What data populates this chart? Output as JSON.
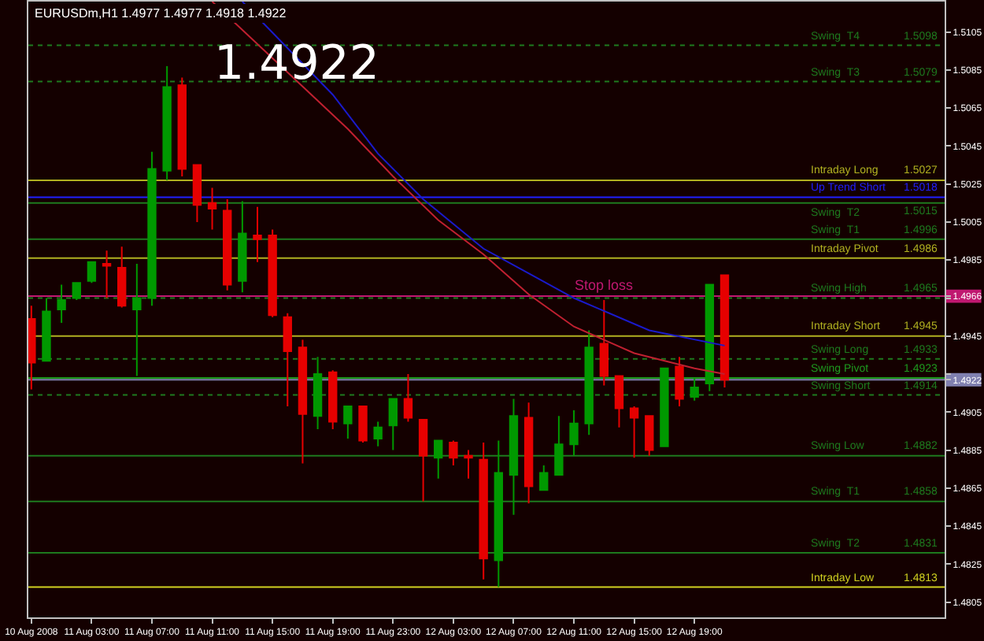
{
  "chart_data": {
    "type": "candlestick",
    "title": "EURUSDm,H1 1.4977 1.4977 1.4918 1.4922",
    "x": [
      "2008-08-10T23:00",
      "2008-08-11T00:00",
      "2008-08-11T01:00",
      "2008-08-11T02:00",
      "2008-08-11T03:00",
      "2008-08-11T04:00",
      "2008-08-11T05:00",
      "2008-08-11T06:00",
      "2008-08-11T07:00",
      "2008-08-11T08:00",
      "2008-08-11T09:00",
      "2008-08-11T10:00",
      "2008-08-11T11:00",
      "2008-08-11T12:00",
      "2008-08-11T13:00",
      "2008-08-11T14:00",
      "2008-08-11T15:00",
      "2008-08-11T16:00",
      "2008-08-11T17:00",
      "2008-08-11T18:00",
      "2008-08-11T19:00",
      "2008-08-11T20:00",
      "2008-08-11T21:00",
      "2008-08-11T22:00",
      "2008-08-11T23:00",
      "2008-08-12T00:00",
      "2008-08-12T01:00",
      "2008-08-12T02:00",
      "2008-08-12T03:00",
      "2008-08-12T04:00",
      "2008-08-12T05:00",
      "2008-08-12T06:00",
      "2008-08-12T07:00",
      "2008-08-12T08:00",
      "2008-08-12T09:00",
      "2008-08-12T10:00",
      "2008-08-12T11:00",
      "2008-08-12T12:00",
      "2008-08-12T13:00",
      "2008-08-12T14:00",
      "2008-08-12T15:00",
      "2008-08-12T16:00",
      "2008-08-12T17:00",
      "2008-08-12T18:00",
      "2008-08-12T19:00",
      "2008-08-12T20:00",
      "2008-08-12T21:00"
    ],
    "ohlc": [
      [
        1.4954,
        1.4961,
        1.4917,
        1.4931
      ],
      [
        1.4932,
        1.4965,
        1.4932,
        1.4958
      ],
      [
        1.4959,
        1.4972,
        1.4952,
        1.4964
      ],
      [
        1.4965,
        1.4973,
        1.4964,
        1.4973
      ],
      [
        1.4974,
        1.4984,
        1.4973,
        1.4984
      ],
      [
        1.4983,
        1.499,
        1.4965,
        1.4982
      ],
      [
        1.4981,
        1.4992,
        1.496,
        1.4961
      ],
      [
        1.4959,
        1.4983,
        1.4924,
        1.4965
      ],
      [
        1.4965,
        1.5042,
        1.4961,
        1.5033
      ],
      [
        1.5032,
        1.5087,
        1.5027,
        1.5076
      ],
      [
        1.5077,
        1.5081,
        1.5029,
        1.5033
      ],
      [
        1.5035,
        1.5035,
        1.5005,
        1.5014
      ],
      [
        1.5015,
        1.5023,
        1.5001,
        1.5012
      ],
      [
        1.5011,
        1.5017,
        1.4969,
        1.4972
      ],
      [
        1.4974,
        1.5016,
        1.4968,
        1.4999
      ],
      [
        1.4998,
        1.5013,
        1.4984,
        1.4996
      ],
      [
        1.4998,
        1.5001,
        1.4955,
        1.4956
      ],
      [
        1.4955,
        1.4957,
        1.4908,
        1.4937
      ],
      [
        1.4939,
        1.4943,
        1.4878,
        1.4904
      ],
      [
        1.4903,
        1.4934,
        1.4896,
        1.4925
      ],
      [
        1.4926,
        1.4927,
        1.4896,
        1.49
      ],
      [
        1.4899,
        1.4908,
        1.4891,
        1.4908
      ],
      [
        1.4908,
        1.4908,
        1.4889,
        1.489
      ],
      [
        1.4891,
        1.49,
        1.4887,
        1.4897
      ],
      [
        1.4898,
        1.4912,
        1.4885,
        1.4912
      ],
      [
        1.4912,
        1.4925,
        1.49,
        1.4902
      ],
      [
        1.4901,
        1.4901,
        1.4858,
        1.4882
      ],
      [
        1.4881,
        1.489,
        1.487,
        1.489
      ],
      [
        1.4889,
        1.489,
        1.4877,
        1.4881
      ],
      [
        1.4882,
        1.4885,
        1.487,
        1.4881
      ],
      [
        1.488,
        1.4889,
        1.4817,
        1.4828
      ],
      [
        1.4827,
        1.489,
        1.4813,
        1.4873
      ],
      [
        1.4872,
        1.4912,
        1.4851,
        1.4903
      ],
      [
        1.4902,
        1.491,
        1.4857,
        1.4866
      ],
      [
        1.4864,
        1.4877,
        1.4864,
        1.4873
      ],
      [
        1.4872,
        1.4903,
        1.4872,
        1.4888
      ],
      [
        1.4888,
        1.4906,
        1.4882,
        1.4899
      ],
      [
        1.4899,
        1.4948,
        1.4893,
        1.4939
      ],
      [
        1.4941,
        1.4964,
        1.4919,
        1.4924
      ],
      [
        1.4924,
        1.4924,
        1.4897,
        1.4907
      ],
      [
        1.4907,
        1.4908,
        1.4881,
        1.4902
      ],
      [
        1.4903,
        1.4903,
        1.4882,
        1.4885
      ],
      [
        1.4887,
        1.4928,
        1.4887,
        1.4928
      ],
      [
        1.4929,
        1.4934,
        1.4908,
        1.4912
      ],
      [
        1.4913,
        1.4923,
        1.4911,
        1.4918
      ],
      [
        1.492,
        1.4972,
        1.4916,
        1.4972
      ],
      [
        1.4977,
        1.4977,
        1.4918,
        1.4922
      ]
    ],
    "colors": [
      "#e60000",
      "#009900",
      "#009900",
      "#009900",
      "#009900",
      "#e60000",
      "#e60000",
      "#009900",
      "#009900",
      "#009900",
      "#e60000",
      "#e60000",
      "#e60000",
      "#e60000",
      "#009900",
      "#e60000",
      "#e60000",
      "#e60000",
      "#e60000",
      "#009900",
      "#e60000",
      "#009900",
      "#e60000",
      "#009900",
      "#009900",
      "#e60000",
      "#e60000",
      "#009900",
      "#e60000",
      "#e60000",
      "#e60000",
      "#009900",
      "#009900",
      "#e60000",
      "#009900",
      "#009900",
      "#009900",
      "#009900",
      "#e60000",
      "#e60000",
      "#e60000",
      "#e60000",
      "#009900",
      "#e60000",
      "#009900",
      "#009900",
      "#e60000"
    ],
    "series": [
      {
        "type": "line",
        "color": "#1a1acc",
        "x": [
          "2008-08-11T13:00",
          "2008-08-11T19:00",
          "2008-08-11T22:00",
          "2008-08-12T01:00",
          "2008-08-12T05:00",
          "2008-08-12T08:00",
          "2008-08-12T11:00",
          "2008-08-12T16:00",
          "2008-08-12T21:00"
        ],
        "values": [
          1.5121,
          1.5072,
          1.5041,
          1.5017,
          1.4991,
          1.4978,
          1.4965,
          1.4948,
          1.494
        ]
      },
      {
        "type": "line",
        "color": "#c02030",
        "x": [
          "2008-08-11T11:00",
          "2008-08-11T20:00",
          "2008-08-11T23:00",
          "2008-08-12T02:00",
          "2008-08-12T05:00",
          "2008-08-12T08:00",
          "2008-08-12T11:00",
          "2008-08-12T15:00",
          "2008-08-12T19:00",
          "2008-08-12T21:00"
        ],
        "values": [
          1.5121,
          1.5054,
          1.5029,
          1.5006,
          1.4988,
          1.4967,
          1.495,
          1.4936,
          1.4928,
          1.4925
        ]
      }
    ],
    "xlim": [
      "2008-08-10T22:48",
      "2008-08-13T11:36"
    ],
    "xticks": [
      {
        "value": "2008-08-10T23:00",
        "label": "10 Aug 2008"
      },
      {
        "value": "2008-08-11T03:00",
        "label": "11 Aug 03:00"
      },
      {
        "value": "2008-08-11T07:00",
        "label": "11 Aug 07:00"
      },
      {
        "value": "2008-08-11T11:00",
        "label": "11 Aug 11:00"
      },
      {
        "value": "2008-08-11T15:00",
        "label": "11 Aug 15:00"
      },
      {
        "value": "2008-08-11T19:00",
        "label": "11 Aug 19:00"
      },
      {
        "value": "2008-08-11T23:00",
        "label": "11 Aug 23:00"
      },
      {
        "value": "2008-08-12T03:00",
        "label": "12 Aug 03:00"
      },
      {
        "value": "2008-08-12T07:00",
        "label": "12 Aug 07:00"
      },
      {
        "value": "2008-08-12T11:00",
        "label": "12 Aug 11:00"
      },
      {
        "value": "2008-08-12T15:00",
        "label": "12 Aug 15:00"
      },
      {
        "value": "2008-08-12T19:00",
        "label": "12 Aug 19:00"
      }
    ],
    "ylim": [
      1.4797,
      1.5121
    ],
    "yticks": [
      1.4805,
      1.4825,
      1.4845,
      1.4865,
      1.4885,
      1.4905,
      1.4922,
      {
        "value": 1.4925,
        "label": null
      },
      1.4945,
      {
        "value": 1.4965,
        "label": null
      },
      1.4966,
      1.4985,
      1.5005,
      1.5025,
      1.5045,
      1.5065,
      1.5085,
      1.5105
    ],
    "ref_lines": [
      {
        "axis": "y",
        "value": 1.5098,
        "label": "Swing  T4",
        "color": "#1e7a1e",
        "line_style": "dotted"
      },
      {
        "axis": "y",
        "value": 1.5079,
        "label": "Swing  T3",
        "color": "#1e7a1e",
        "line_style": "dotted"
      },
      {
        "axis": "y",
        "value": 1.5027,
        "label": "Intraday Long",
        "color": "#b0b020",
        "line_style": "solid"
      },
      {
        "axis": "y",
        "value": 1.5018,
        "label": "Up Trend Short",
        "color": "#2020ff",
        "line_style": "solid"
      },
      {
        "axis": "y",
        "value": 1.5015,
        "label": "Swing  T2",
        "color": "#1e7a1e",
        "line_style": "solid"
      },
      {
        "axis": "y",
        "value": 1.4996,
        "label": "Swing  T1",
        "color": "#1e7a1e",
        "line_style": "solid"
      },
      {
        "axis": "y",
        "value": 1.4986,
        "label": "Intraday Pivot",
        "color": "#b0b020",
        "line_style": "solid"
      },
      {
        "axis": "y",
        "value": 1.4965,
        "label": "Swing High",
        "color": "#1e7a1e",
        "line_style": "dotted"
      },
      {
        "axis": "y",
        "value": 1.4966,
        "color": "#c01870",
        "line_style": "solid"
      },
      {
        "axis": "y",
        "value": 1.4945,
        "label": "Intraday Short",
        "color": "#b0b020",
        "line_style": "solid"
      },
      {
        "axis": "y",
        "value": 1.4933,
        "label": "Swing Long",
        "color": "#1e7a1e",
        "line_style": "dotted"
      },
      {
        "axis": "y",
        "value": 1.4923,
        "label": "Swing Pivot",
        "color": "#1e9a1e",
        "line_style": "solid"
      },
      {
        "axis": "y",
        "value": 1.4922,
        "color": "#8080b0",
        "line_style": "solid"
      },
      {
        "axis": "y",
        "value": 1.4914,
        "label": "Swing Short",
        "color": "#1e7a1e",
        "line_style": "dotted"
      },
      {
        "axis": "y",
        "value": 1.4882,
        "label": "Swing Low",
        "color": "#1e7a1e",
        "line_style": "solid"
      },
      {
        "axis": "y",
        "value": 1.4858,
        "label": "Swing  T1",
        "color": "#1e7a1e",
        "line_style": "solid"
      },
      {
        "axis": "y",
        "value": 1.4831,
        "label": "Swing  T2",
        "color": "#1e7a1e",
        "line_style": "solid"
      },
      {
        "axis": "y",
        "value": 1.4813,
        "label": "Intraday Low",
        "color": "#d0d020",
        "line_style": "solid"
      }
    ],
    "annotations": [
      "1.4922",
      {
        "text": "Stop loss",
        "x": "2008-08-12T13:00",
        "y": 1.4966
      },
      {
        "text": "1.5098",
        "y": 1.5098
      },
      {
        "text": "1.5079",
        "y": 1.5079
      },
      {
        "text": "1.5027",
        "y": 1.5027
      },
      {
        "text": "1.5018",
        "y": 1.5018
      },
      {
        "text": "1.5015",
        "y": 1.5015
      },
      {
        "text": "1.4996",
        "y": 1.4996
      },
      {
        "text": "1.4986",
        "y": 1.4986
      },
      {
        "text": "1.4965",
        "y": 1.4965
      },
      {
        "text": "1.4945",
        "y": 1.4945
      },
      {
        "text": "1.4933",
        "y": 1.4933
      },
      {
        "text": "1.4923",
        "y": 1.4923
      },
      {
        "text": "1.4914",
        "y": 1.4914
      },
      {
        "text": "1.4882",
        "y": 1.4882
      },
      {
        "text": "1.4858",
        "y": 1.4858
      },
      {
        "text": "1.4831",
        "y": 1.4831
      },
      {
        "text": "1.4813",
        "y": 1.4813
      }
    ]
  }
}
